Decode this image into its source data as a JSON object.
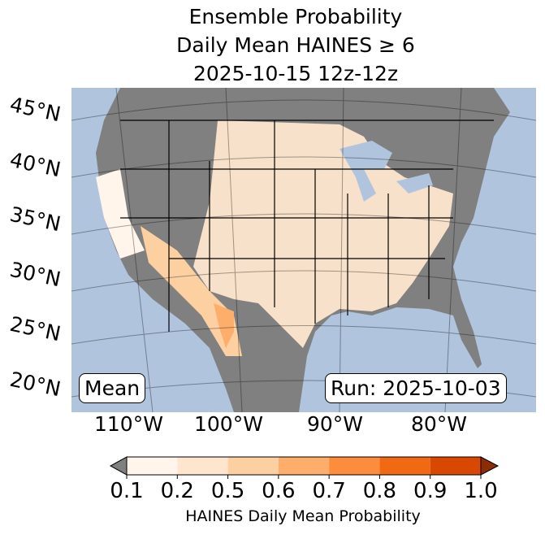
{
  "title": {
    "line1": "Ensemble Probability",
    "line2": "Daily Mean HAINES ≥ 6",
    "line3": "2025-10-15 12z-12z"
  },
  "lat_labels": [
    "45°N",
    "40°N",
    "35°N",
    "30°N",
    "25°N",
    "20°N"
  ],
  "lon_labels": [
    "110°W",
    "100°W",
    "90°W",
    "80°W"
  ],
  "mean_label": "Mean",
  "run_label": "Run: 2025-10-03",
  "colorbar": {
    "ticks": [
      "0.1",
      "0.2",
      "0.5",
      "0.6",
      "0.7",
      "0.8",
      "0.9",
      "1.0"
    ],
    "colors": [
      "#fff5eb",
      "#fee6ce",
      "#fdd0a2",
      "#fdae6b",
      "#fd8d3c",
      "#f16913",
      "#d94801"
    ],
    "under_color": "#808080",
    "over_color": "#8c2d04",
    "label": "HAINES Daily Mean Probability"
  },
  "colors": {
    "ocean": "#b0c4de",
    "land_masked": "#808080",
    "low_prob": "#fee6ce"
  }
}
